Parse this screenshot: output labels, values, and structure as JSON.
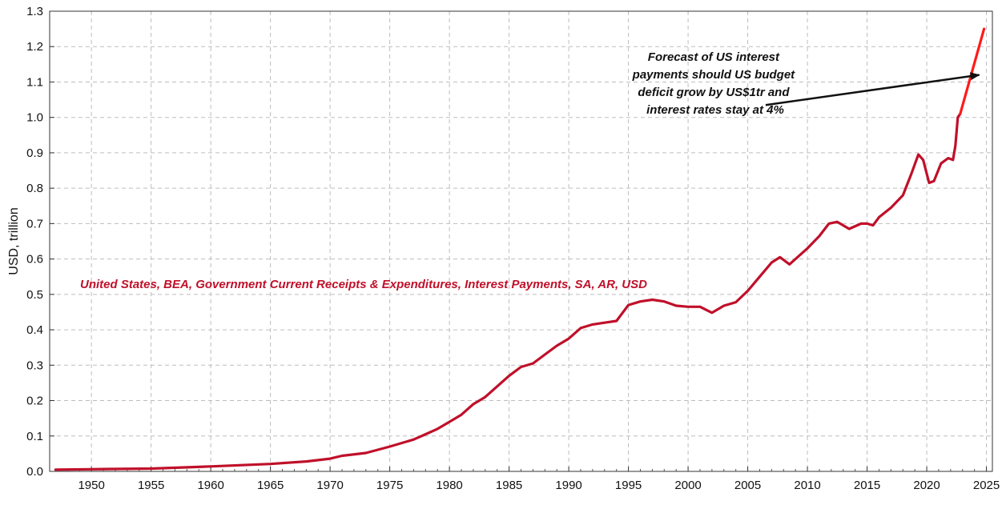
{
  "chart_data": {
    "type": "line",
    "ylabel": "USD, trillion",
    "xlabel": "",
    "xlim": [
      1946.5,
      2025.5
    ],
    "ylim": [
      0,
      1.3
    ],
    "grid": true,
    "x_ticks": [
      1950,
      1955,
      1960,
      1965,
      1970,
      1975,
      1980,
      1985,
      1990,
      1995,
      2000,
      2005,
      2010,
      2015,
      2020,
      2025
    ],
    "x_tick_labels": [
      "1950",
      "1955",
      "1960",
      "1965",
      "1970",
      "1975",
      "1980",
      "1985",
      "1990",
      "1995",
      "2000",
      "2005",
      "2010",
      "2015",
      "2020",
      "2025"
    ],
    "y_ticks": [
      0,
      0.1,
      0.2,
      0.3,
      0.4,
      0.5,
      0.6,
      0.7,
      0.8,
      0.9,
      1.0,
      1.1,
      1.2,
      1.3
    ],
    "y_tick_labels": [
      "0.0",
      "0.1",
      "0.2",
      "0.3",
      "0.4",
      "0.5",
      "0.6",
      "0.7",
      "0.8",
      "0.9",
      "1.0",
      "1.1",
      "1.2",
      "1.3"
    ],
    "series": [
      {
        "name": "United States, BEA, Government Current Receipts & Expenditures, Interest Payments, SA, AR, USD",
        "color": "#c0102a",
        "points": [
          [
            1947,
            0.005
          ],
          [
            1950,
            0.006
          ],
          [
            1955,
            0.008
          ],
          [
            1960,
            0.014
          ],
          [
            1965,
            0.021
          ],
          [
            1968,
            0.028
          ],
          [
            1970,
            0.036
          ],
          [
            1971,
            0.044
          ],
          [
            1973,
            0.052
          ],
          [
            1975,
            0.07
          ],
          [
            1977,
            0.09
          ],
          [
            1978,
            0.105
          ],
          [
            1979,
            0.12
          ],
          [
            1980,
            0.14
          ],
          [
            1981,
            0.16
          ],
          [
            1982,
            0.19
          ],
          [
            1983,
            0.21
          ],
          [
            1984,
            0.24
          ],
          [
            1985,
            0.27
          ],
          [
            1986,
            0.295
          ],
          [
            1987,
            0.305
          ],
          [
            1988,
            0.33
          ],
          [
            1989,
            0.355
          ],
          [
            1990,
            0.375
          ],
          [
            1991,
            0.405
          ],
          [
            1992,
            0.415
          ],
          [
            1993,
            0.42
          ],
          [
            1994,
            0.425
          ],
          [
            1995,
            0.47
          ],
          [
            1996,
            0.48
          ],
          [
            1997,
            0.485
          ],
          [
            1998,
            0.48
          ],
          [
            1999,
            0.468
          ],
          [
            2000,
            0.465
          ],
          [
            2001,
            0.465
          ],
          [
            2002,
            0.448
          ],
          [
            2003,
            0.468
          ],
          [
            2004,
            0.478
          ],
          [
            2005,
            0.51
          ],
          [
            2006,
            0.55
          ],
          [
            2007,
            0.59
          ],
          [
            2007.7,
            0.605
          ],
          [
            2008.5,
            0.585
          ],
          [
            2009,
            0.6
          ],
          [
            2010,
            0.63
          ],
          [
            2011,
            0.665
          ],
          [
            2011.8,
            0.7
          ],
          [
            2012.5,
            0.705
          ],
          [
            2013.5,
            0.685
          ],
          [
            2014.5,
            0.7
          ],
          [
            2015,
            0.7
          ],
          [
            2015.5,
            0.695
          ],
          [
            2016,
            0.718
          ],
          [
            2017,
            0.745
          ],
          [
            2018,
            0.78
          ],
          [
            2018.7,
            0.84
          ],
          [
            2019.3,
            0.895
          ],
          [
            2019.7,
            0.88
          ],
          [
            2020.2,
            0.815
          ],
          [
            2020.6,
            0.82
          ],
          [
            2021.2,
            0.87
          ],
          [
            2021.8,
            0.885
          ],
          [
            2022.2,
            0.88
          ],
          [
            2022.4,
            0.92
          ],
          [
            2022.6,
            1.0
          ],
          [
            2022.8,
            1.01
          ]
        ]
      },
      {
        "name": "Forecast",
        "color": "#ff1a1a",
        "points": [
          [
            2022.8,
            1.01
          ],
          [
            2024.8,
            1.25
          ]
        ]
      }
    ],
    "annotations": [
      {
        "text_lines": [
          "Forecast of US interest",
          "payments should US budget",
          "deficit grow by US$1tr and",
          "interest rates stay at 4%"
        ],
        "arrow_from": [
          2006.5,
          1.035
        ],
        "arrow_to": [
          2024.4,
          1.12
        ]
      }
    ]
  }
}
